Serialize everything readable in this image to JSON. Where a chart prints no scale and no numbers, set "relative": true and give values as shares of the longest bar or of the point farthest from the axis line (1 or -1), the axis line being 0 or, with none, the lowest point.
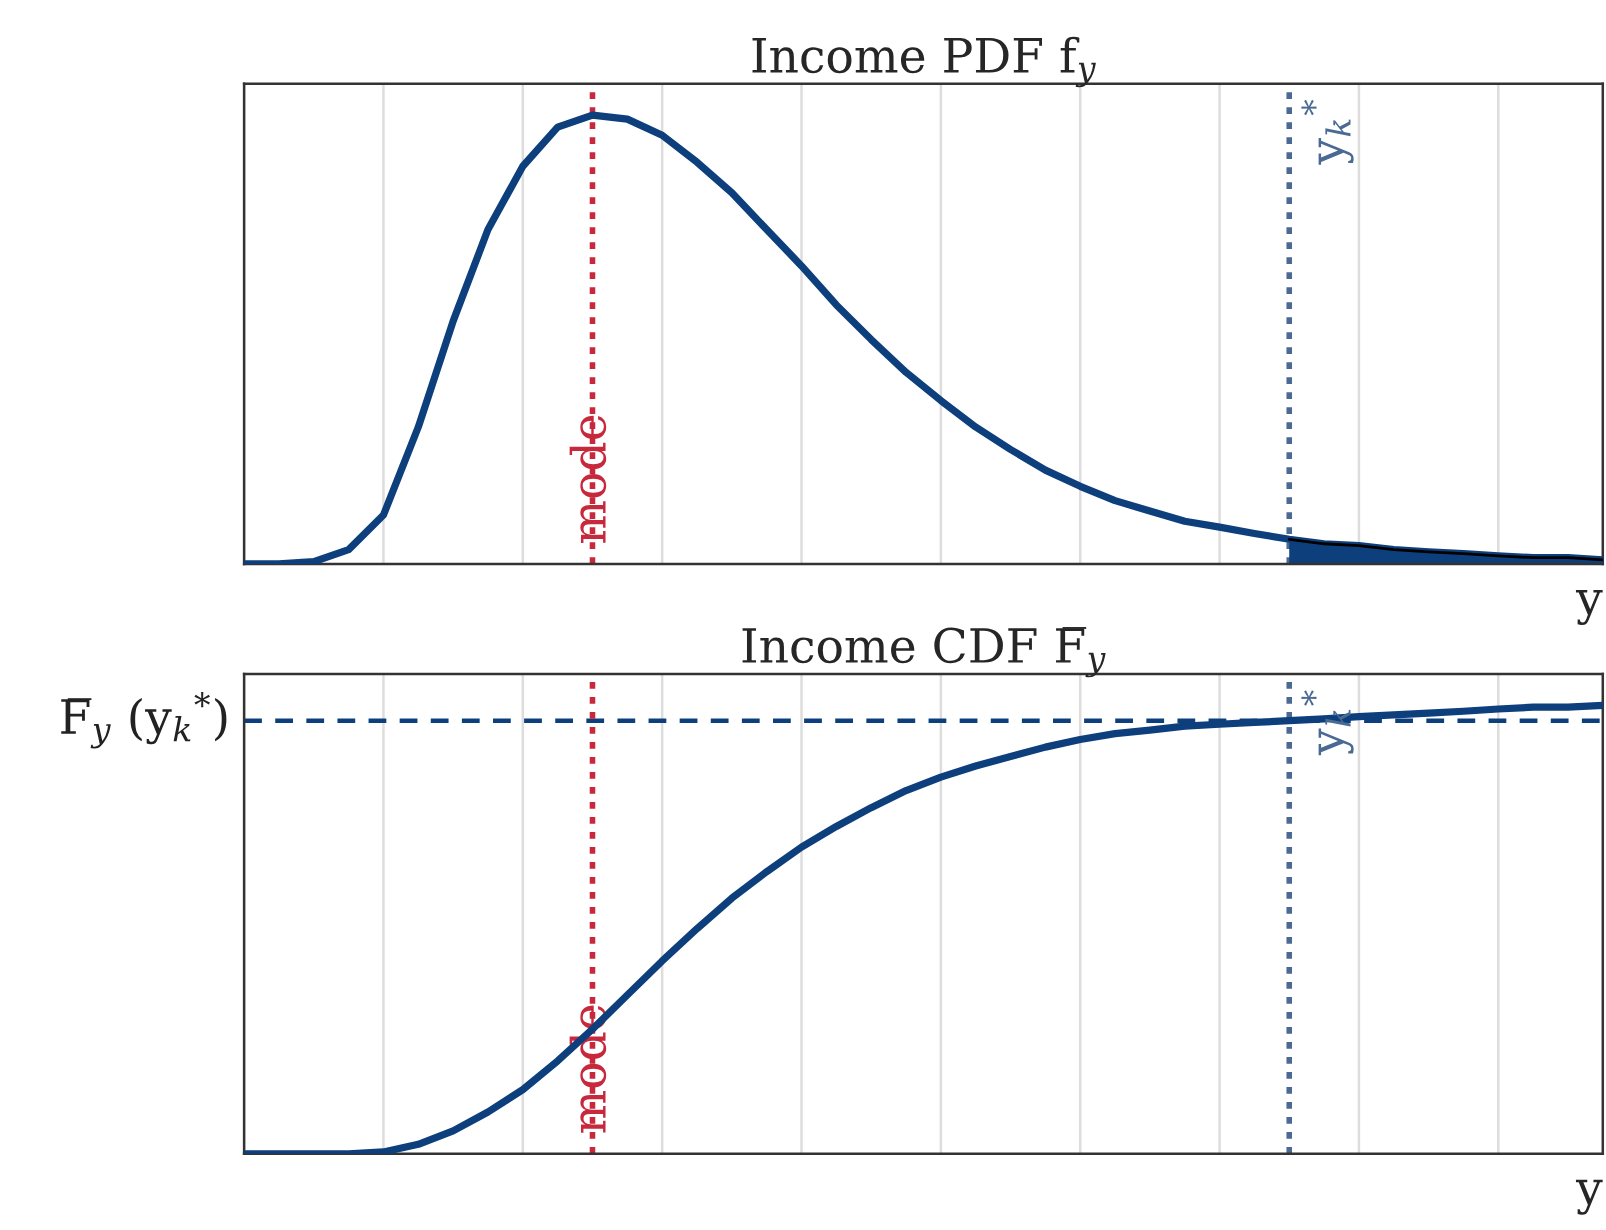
{
  "chart_data": [
    {
      "type": "line",
      "title": "Income PDF f$_{y}$",
      "xlabel": "y",
      "relative": true,
      "grid": "x",
      "categories": [
        null,
        null,
        null,
        null,
        null,
        null,
        null,
        null,
        null,
        null,
        null,
        null,
        null,
        null,
        null,
        null,
        null,
        null,
        null,
        null,
        null,
        null,
        null,
        null,
        null,
        null,
        null,
        null,
        null,
        null,
        null,
        null,
        null,
        null,
        null,
        null,
        null,
        null,
        null,
        null
      ],
      "series": [
        {
          "color": "#0d3f7d",
          "values": [
            0,
            0,
            0.005,
            0.032,
            0.109,
            0.305,
            0.541,
            0.745,
            0.886,
            0.973,
            1.0,
            0.991,
            0.955,
            0.895,
            0.827,
            0.745,
            0.664,
            0.577,
            0.5,
            0.427,
            0.364,
            0.305,
            0.255,
            0.209,
            0.173,
            0.141,
            0.118,
            0.095,
            0.082,
            0.068,
            0.055,
            0.045,
            0.041,
            0.032,
            0.027,
            0.023,
            0.018,
            0.014,
            0.014,
            0.009
          ]
        },
        {
          "type": "area",
          "color": "#0d3f7d",
          "values": [
            null,
            null,
            null,
            null,
            null,
            null,
            null,
            null,
            null,
            null,
            null,
            null,
            null,
            null,
            null,
            null,
            null,
            null,
            null,
            null,
            null,
            null,
            null,
            null,
            null,
            null,
            null,
            null,
            null,
            null,
            0.055,
            0.045,
            0.041,
            0.032,
            0.027,
            0.023,
            0.018,
            0.014,
            0.014,
            0.009
          ]
        }
      ],
      "annotations": [
        "mode",
        "y$_{k}$$^{*}$"
      ]
    },
    {
      "type": "line",
      "title": "Income CDF F̅$_{y}$",
      "xlabel": "y",
      "relative": true,
      "grid": "x",
      "categories": [
        null,
        null,
        null,
        null,
        null,
        null,
        null,
        null,
        null,
        null,
        null,
        null,
        null,
        null,
        null,
        null,
        null,
        null,
        null,
        null,
        null,
        null,
        null,
        null,
        null,
        null,
        null,
        null,
        null,
        null,
        null,
        null,
        null,
        null,
        null,
        null,
        null,
        null,
        null,
        null
      ],
      "series": [
        {
          "color": "#0d3f7d",
          "values": [
            0,
            0,
            0,
            0,
            0.004,
            0.021,
            0.051,
            0.093,
            0.143,
            0.207,
            0.278,
            0.354,
            0.43,
            0.502,
            0.57,
            0.629,
            0.684,
            0.73,
            0.772,
            0.81,
            0.84,
            0.865,
            0.886,
            0.907,
            0.924,
            0.937,
            0.945,
            0.954,
            0.958,
            0.962,
            0.966,
            0.97,
            0.975,
            0.979,
            0.983,
            0.987,
            0.992,
            0.996,
            0.996,
            1.0
          ]
        }
      ],
      "ref_lines": [
        {
          "axis": "y",
          "value": 0.966,
          "label": "F̅$_{y}$ (y$_{k}$$^{*}$)",
          "color": "#0d3f7d",
          "line_style": "dashed"
        }
      ],
      "annotations": [
        "mode",
        "y$_{k}$$^{*}$"
      ]
    }
  ]
}
